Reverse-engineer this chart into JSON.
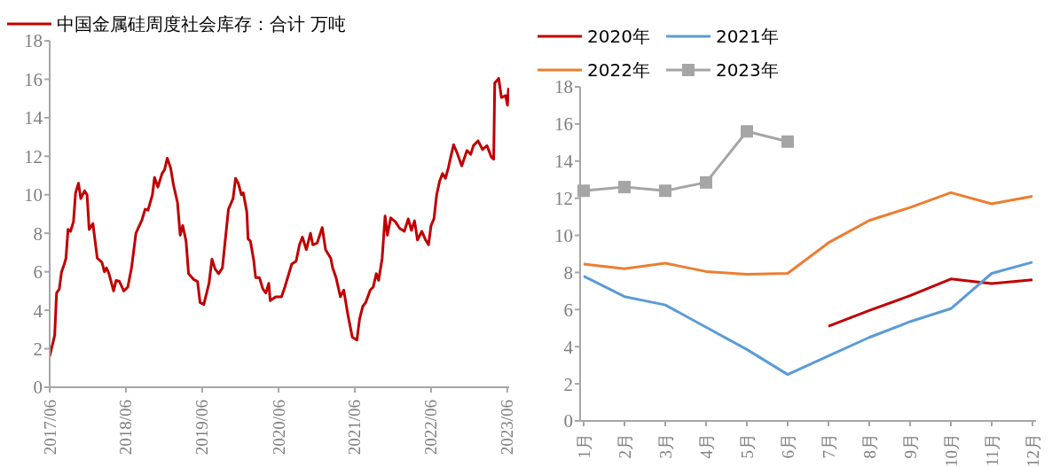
{
  "chart_data": [
    {
      "type": "line",
      "legend": "top left",
      "marker": "none",
      "x": [
        "2017-06-01",
        "2017-06-25",
        "2017-07-04",
        "2017-07-17",
        "2017-07-28",
        "2017-08-10",
        "2017-08-18",
        "2017-08-28",
        "2017-09-09",
        "2017-09-23",
        "2017-10-03",
        "2017-10-17",
        "2017-10-28",
        "2017-11-15",
        "2017-11-27",
        "2017-12-07",
        "2017-12-25",
        "2018-01-15",
        "2018-02-06",
        "2018-02-18",
        "2018-02-28",
        "2018-03-12",
        "2018-04-03",
        "2018-04-15",
        "2018-05-01",
        "2018-05-22",
        "2018-06-10",
        "2018-06-28",
        "2018-07-19",
        "2018-08-17",
        "2018-09-01",
        "2018-09-15",
        "2018-10-06",
        "2018-10-16",
        "2018-11-01",
        "2018-11-21",
        "2018-12-03",
        "2018-12-16",
        "2019-01-01",
        "2019-01-15",
        "2019-02-03",
        "2019-02-16",
        "2019-02-28",
        "2019-03-16",
        "2019-03-28",
        "2019-04-21",
        "2019-05-10",
        "2019-05-22",
        "2019-06-09",
        "2019-07-04",
        "2019-07-18",
        "2019-08-02",
        "2019-08-19",
        "2019-09-06",
        "2019-10-05",
        "2019-10-27",
        "2019-11-08",
        "2019-11-21",
        "2019-12-06",
        "2019-12-15",
        "2020-01-01",
        "2020-01-07",
        "2020-01-18",
        "2020-02-03",
        "2020-02-12",
        "2020-03-01",
        "2020-03-18",
        "2020-04-01",
        "2020-04-15",
        "2020-04-22",
        "2020-05-18",
        "2020-06-15",
        "2020-07-01",
        "2020-08-03",
        "2020-08-24",
        "2020-09-09",
        "2020-09-23",
        "2020-10-12",
        "2020-11-01",
        "2020-11-12",
        "2020-12-03",
        "2020-12-27",
        "2021-01-12",
        "2021-02-06",
        "2021-02-15",
        "2021-03-03",
        "2021-03-24",
        "2021-04-09",
        "2021-04-30",
        "2021-05-20",
        "2021-06-11",
        "2021-06-24",
        "2021-07-09",
        "2021-07-23",
        "2021-08-14",
        "2021-08-28",
        "2021-09-12",
        "2021-09-23",
        "2021-10-10",
        "2021-10-24",
        "2021-11-04",
        "2021-11-20",
        "2021-12-12",
        "2022-01-02",
        "2022-01-24",
        "2022-02-12",
        "2022-02-27",
        "2022-03-14",
        "2022-03-28",
        "2022-04-18",
        "2022-05-06",
        "2022-05-20",
        "2022-06-01",
        "2022-06-15",
        "2022-06-28",
        "2022-07-12",
        "2022-07-26",
        "2022-08-09",
        "2022-08-24",
        "2022-09-03",
        "2022-09-17",
        "2022-10-03",
        "2022-10-26",
        "2022-11-20",
        "2022-12-08",
        "2022-12-21",
        "2023-01-12",
        "2023-02-03",
        "2023-02-24",
        "2023-03-17",
        "2023-03-28",
        "2023-04-02",
        "2023-04-21",
        "2023-05-04",
        "2023-05-24",
        "2023-06-02",
        "2023-06-07"
      ],
      "series": [
        {
          "name": "中国金属硅周度社会库存：合计 万吨",
          "color": "#c00000",
          "values": [
            1.6,
            2.7,
            4.9,
            5.1,
            6.0,
            6.4,
            6.7,
            8.2,
            8.1,
            8.6,
            10.1,
            10.6,
            9.8,
            10.2,
            10.0,
            8.2,
            8.5,
            6.7,
            6.5,
            6.0,
            6.2,
            5.9,
            5.0,
            5.55,
            5.5,
            5.0,
            5.2,
            6.2,
            8.0,
            8.7,
            9.25,
            9.2,
            10.0,
            10.9,
            10.4,
            11.1,
            11.3,
            11.9,
            11.4,
            10.5,
            9.6,
            7.9,
            8.4,
            7.6,
            5.9,
            5.6,
            5.5,
            4.4,
            4.3,
            5.4,
            6.65,
            6.15,
            5.9,
            6.2,
            9.25,
            9.8,
            10.85,
            10.6,
            10.0,
            10.1,
            9.1,
            7.7,
            7.6,
            6.6,
            5.7,
            5.7,
            5.1,
            4.9,
            5.4,
            4.5,
            4.7,
            4.7,
            5.2,
            6.4,
            6.55,
            7.4,
            7.8,
            7.15,
            8.0,
            7.4,
            7.5,
            8.3,
            7.15,
            6.7,
            6.2,
            5.7,
            4.7,
            5.05,
            3.7,
            2.6,
            2.45,
            3.55,
            4.2,
            4.4,
            5.05,
            5.2,
            5.9,
            5.55,
            6.7,
            8.9,
            7.9,
            8.8,
            8.6,
            8.25,
            8.1,
            8.75,
            8.15,
            8.65,
            7.65,
            8.1,
            7.65,
            7.4,
            8.4,
            8.75,
            10.0,
            10.7,
            11.1,
            10.85,
            11.45,
            11.95,
            12.6,
            12.2,
            11.5,
            12.3,
            12.1,
            12.55,
            12.8,
            12.35,
            12.55,
            11.95,
            11.85,
            15.8,
            16.05,
            15.05,
            15.15,
            14.65,
            15.55
          ]
        }
      ],
      "xlim": [
        "2017-06-01",
        "2023-06-10"
      ],
      "xticks": [
        {
          "value": "2017-06",
          "label": "2017/06"
        },
        {
          "value": "2018-06",
          "label": "2018/06"
        },
        {
          "value": "2019-06",
          "label": "2019/06"
        },
        {
          "value": "2020-06",
          "label": "2020/06"
        },
        {
          "value": "2021-06",
          "label": "2021/06"
        },
        {
          "value": "2022-06",
          "label": "2022/06"
        },
        {
          "value": "2023-06",
          "label": "2023/06"
        }
      ],
      "ylim": [
        0,
        18
      ],
      "yticks": [
        0,
        2,
        4,
        6,
        8,
        10,
        12,
        14,
        16,
        18
      ]
    },
    {
      "type": "line",
      "legend": "top",
      "categories": [
        "1月",
        "2月",
        "3月",
        "4月",
        "5月",
        "6月",
        "7月",
        "8月",
        "9月",
        "10月",
        "11月",
        "12月"
      ],
      "series": [
        {
          "name": "2020年",
          "color": "#c00000",
          "marker": "none",
          "values": [
            null,
            null,
            null,
            null,
            null,
            null,
            5.1,
            5.95,
            6.75,
            7.65,
            7.4,
            7.6
          ]
        },
        {
          "name": "2021年",
          "color": "#5b9bd5",
          "marker": "none",
          "values": [
            7.8,
            6.7,
            6.25,
            5.05,
            3.85,
            2.5,
            3.5,
            4.5,
            5.35,
            6.05,
            7.95,
            8.55
          ]
        },
        {
          "name": "2022年",
          "color": "#ed7d31",
          "marker": "none",
          "values": [
            8.45,
            8.2,
            8.5,
            8.05,
            7.9,
            7.95,
            9.6,
            10.8,
            11.5,
            12.3,
            11.7,
            12.1
          ]
        },
        {
          "name": "2023年",
          "color": "#a5a5a5",
          "marker": "square",
          "values": [
            12.4,
            12.6,
            12.4,
            12.85,
            15.6,
            15.05,
            null,
            null,
            null,
            null,
            null,
            null
          ]
        }
      ],
      "ylim": [
        0,
        18
      ],
      "yticks": [
        0,
        2,
        4,
        6,
        8,
        10,
        12,
        14,
        16,
        18
      ]
    }
  ]
}
